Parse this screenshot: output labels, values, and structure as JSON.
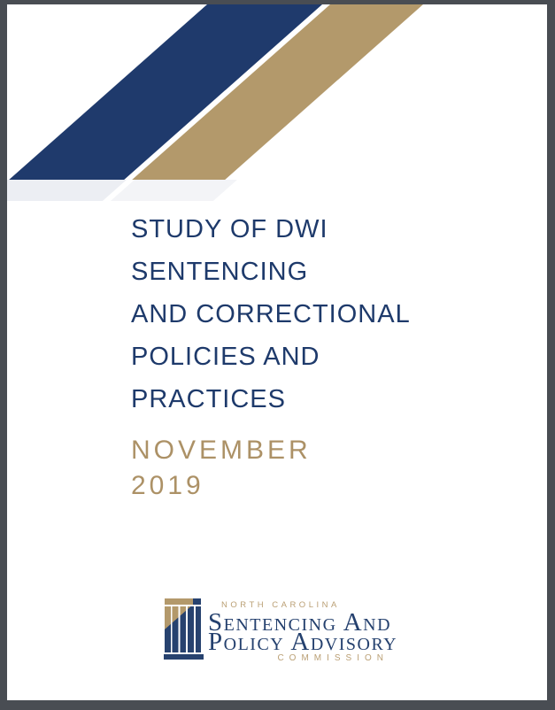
{
  "cover": {
    "title_lines": [
      "STUDY OF DWI",
      "SENTENCING",
      "AND CORRECTIONAL",
      "POLICIES AND",
      "PRACTICES"
    ],
    "date_lines": [
      "NOVEMBER",
      "2019"
    ]
  },
  "logo": {
    "region": "NORTH CAROLINA",
    "name_line1": "Sentencing And",
    "name_line2": "Policy Advisory",
    "suffix": "COMMISSION"
  },
  "colors": {
    "stripe_navy": "#1f3a6c",
    "stripe_gold": "#b3996b",
    "stripe_gray_left": "#eceef3",
    "stripe_gray_right": "#f3f4f7",
    "title_text": "#1e3a6b",
    "date_text": "#ac9166",
    "logo_navy": "#24406e",
    "logo_gold": "#ba9f74",
    "frame_background": "#494d53",
    "page_background": "#ffffff"
  }
}
